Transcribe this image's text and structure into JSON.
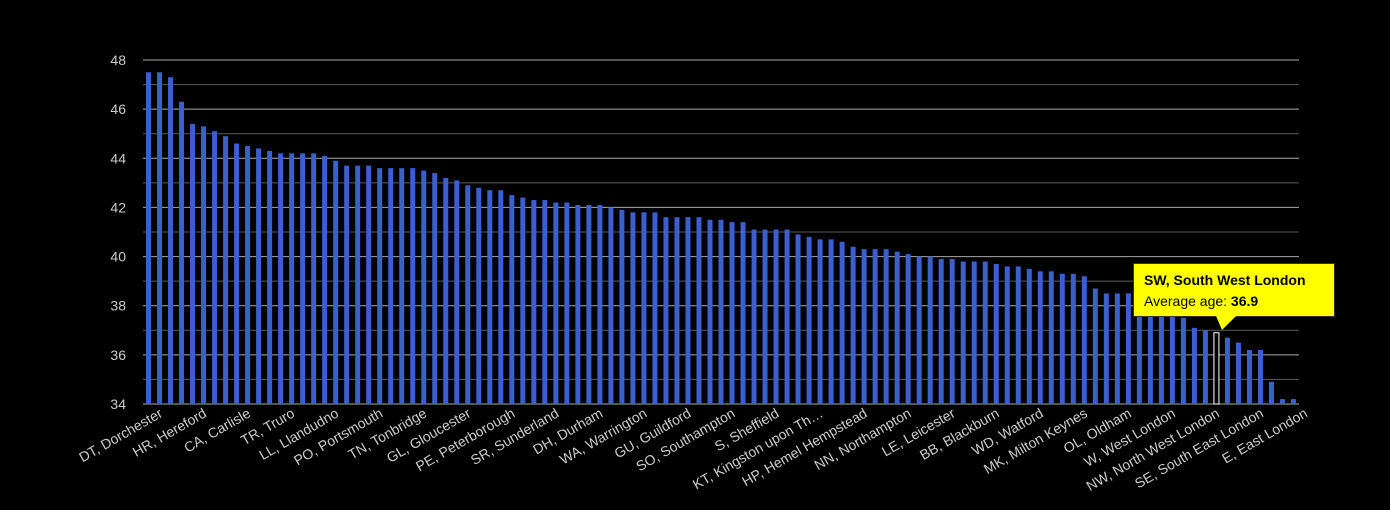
{
  "colors": {
    "background": "#000000",
    "bar": "#3b5fcf",
    "bar_highlight": "#000000",
    "grid": "#8c8c8c",
    "axis_text": "#cccccc",
    "tooltip_bg": "#ffff00"
  },
  "chart_data": {
    "type": "bar",
    "ylim": [
      34,
      48
    ],
    "yticks": [
      34,
      36,
      38,
      40,
      42,
      44,
      46,
      48
    ],
    "minor_grid": true,
    "values": [
      47.5,
      47.5,
      47.3,
      46.3,
      45.4,
      45.3,
      45.1,
      44.9,
      44.6,
      44.5,
      44.4,
      44.3,
      44.2,
      44.2,
      44.2,
      44.2,
      44.1,
      43.9,
      43.7,
      43.7,
      43.7,
      43.6,
      43.6,
      43.6,
      43.6,
      43.5,
      43.4,
      43.2,
      43.1,
      42.9,
      42.8,
      42.7,
      42.7,
      42.5,
      42.4,
      42.3,
      42.3,
      42.2,
      42.2,
      42.1,
      42.1,
      42.1,
      42.0,
      41.9,
      41.8,
      41.8,
      41.8,
      41.6,
      41.6,
      41.6,
      41.6,
      41.5,
      41.5,
      41.4,
      41.4,
      41.1,
      41.1,
      41.1,
      41.1,
      40.9,
      40.8,
      40.7,
      40.7,
      40.6,
      40.4,
      40.3,
      40.3,
      40.3,
      40.2,
      40.1,
      40.0,
      40.0,
      39.9,
      39.9,
      39.8,
      39.8,
      39.8,
      39.7,
      39.6,
      39.6,
      39.5,
      39.4,
      39.4,
      39.3,
      39.3,
      39.2,
      38.7,
      38.5,
      38.5,
      38.5,
      38.4,
      38.0,
      37.8,
      37.6,
      37.5,
      37.1,
      37.0,
      36.9,
      36.7,
      36.5,
      36.2,
      36.2,
      34.9,
      34.2,
      34.2
    ],
    "highlight_index": 97,
    "x_tick_labels": [
      {
        "index": 1,
        "label": "DT, Dorchester"
      },
      {
        "index": 5,
        "label": "HR, Hereford"
      },
      {
        "index": 9,
        "label": "CA, Carlisle"
      },
      {
        "index": 13,
        "label": "TR, Truro"
      },
      {
        "index": 17,
        "label": "LL, Llandudno"
      },
      {
        "index": 21,
        "label": "PO, Portsmouth"
      },
      {
        "index": 25,
        "label": "TN, Tonbridge"
      },
      {
        "index": 29,
        "label": "GL, Gloucester"
      },
      {
        "index": 33,
        "label": "PE, Peterborough"
      },
      {
        "index": 37,
        "label": "SR, Sunderland"
      },
      {
        "index": 41,
        "label": "DH, Durham"
      },
      {
        "index": 45,
        "label": "WA, Warrington"
      },
      {
        "index": 49,
        "label": "GU, Guildford"
      },
      {
        "index": 53,
        "label": "SO, Southampton"
      },
      {
        "index": 57,
        "label": "S, Sheffield"
      },
      {
        "index": 61,
        "label": "KT, Kingston upon Th…"
      },
      {
        "index": 65,
        "label": "HP, Hemel Hempstead"
      },
      {
        "index": 69,
        "label": "NN, Northampton"
      },
      {
        "index": 73,
        "label": "LE, Leicester"
      },
      {
        "index": 77,
        "label": "BB, Blackburn"
      },
      {
        "index": 81,
        "label": "WD, Watford"
      },
      {
        "index": 85,
        "label": "MK, Milton Keynes"
      },
      {
        "index": 89,
        "label": "OL, Oldham"
      },
      {
        "index": 93,
        "label": "W, West London"
      },
      {
        "index": 97,
        "label": "NW, North West London"
      },
      {
        "index": 101,
        "label": "SE, South East London"
      },
      {
        "index": 105,
        "label": "E, East London"
      }
    ]
  },
  "tooltip": {
    "title": "SW, South West London",
    "label": "Average age:",
    "value": "36.9"
  }
}
